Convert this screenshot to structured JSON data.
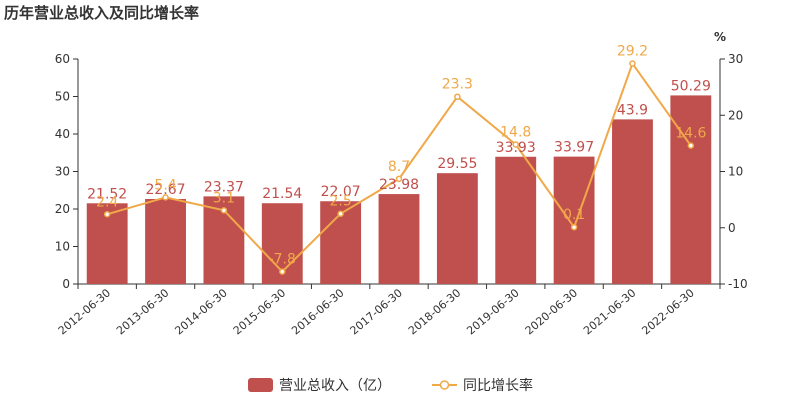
{
  "chart_data": {
    "type": "bar+line",
    "title": "历年营业总收入及同比增长率",
    "categories": [
      "2012-06-30",
      "2013-06-30",
      "2014-06-30",
      "2015-06-30",
      "2016-06-30",
      "2017-06-30",
      "2018-06-30",
      "2019-06-30",
      "2020-06-30",
      "2021-06-30",
      "2022-06-30"
    ],
    "series": [
      {
        "name": "营业总收入（亿）",
        "type": "bar",
        "axis": "left",
        "values": [
          21.52,
          22.67,
          23.37,
          21.54,
          22.07,
          23.98,
          29.55,
          33.93,
          33.97,
          43.9,
          50.29
        ],
        "color": "#c0504d"
      },
      {
        "name": "同比增长率",
        "type": "line",
        "axis": "right",
        "values": [
          2.4,
          5.4,
          3.1,
          -7.8,
          2.5,
          8.7,
          23.3,
          14.8,
          0.1,
          29.2,
          14.6
        ],
        "color": "#f0a848"
      }
    ],
    "y_left": {
      "ylim": [
        0,
        60
      ],
      "ticks": [
        0,
        10,
        20,
        30,
        40,
        50,
        60
      ]
    },
    "y_right": {
      "ylim": [
        -10,
        30
      ],
      "ticks": [
        -10,
        0,
        10,
        20,
        30
      ],
      "unit": "%"
    },
    "legend": "bottom-center",
    "grid": false
  }
}
